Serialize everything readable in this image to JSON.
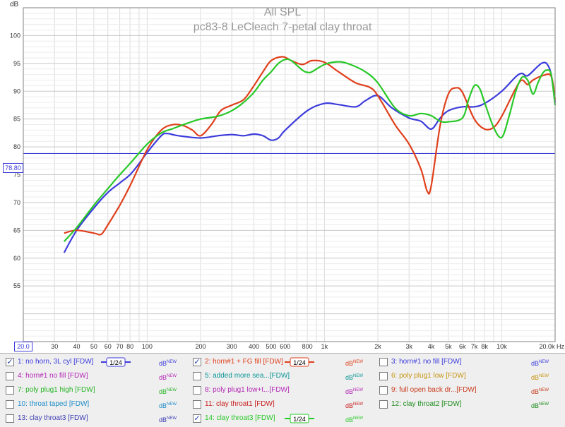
{
  "title": "All SPL",
  "subtitle": "pc83-8 LeCleach 7-petal clay throat",
  "chart_data": {
    "type": "line",
    "xscale": "log",
    "xlim": [
      20,
      20000
    ],
    "ylim": [
      45,
      105
    ],
    "ylabel": "dB",
    "xlabel": "Hz",
    "y_ticks": [
      "55",
      "60",
      "65",
      "70",
      "75",
      "80",
      "85",
      "90",
      "95",
      "100"
    ],
    "x_ticks": [
      {
        "v": 30,
        "t": "30"
      },
      {
        "v": 40,
        "t": "40"
      },
      {
        "v": 50,
        "t": "50"
      },
      {
        "v": 60,
        "t": "60"
      },
      {
        "v": 70,
        "t": "70"
      },
      {
        "v": 80,
        "t": "80"
      },
      {
        "v": 100,
        "t": "100"
      },
      {
        "v": 200,
        "t": "200"
      },
      {
        "v": 300,
        "t": "300"
      },
      {
        "v": 400,
        "t": "400"
      },
      {
        "v": 500,
        "t": "500"
      },
      {
        "v": 600,
        "t": "600"
      },
      {
        "v": 800,
        "t": "800"
      },
      {
        "v": 1000,
        "t": "1k"
      },
      {
        "v": 2000,
        "t": "2k"
      },
      {
        "v": 3000,
        "t": "3k"
      },
      {
        "v": 4000,
        "t": "4k"
      },
      {
        "v": 5000,
        "t": "5k"
      },
      {
        "v": 6000,
        "t": "6k"
      },
      {
        "v": 7000,
        "t": "7k"
      },
      {
        "v": 8000,
        "t": "8k"
      },
      {
        "v": 10000,
        "t": "10k"
      },
      {
        "v": 20000,
        "t": "20.0k Hz"
      }
    ],
    "x_min_label": "20.0",
    "cursor": {
      "value": 78.8,
      "label": "78.80",
      "color": "#3c3cdc"
    },
    "grid": true,
    "series": [
      {
        "name": "1: no horn, 3L cyl [FDW]",
        "color": "#3c3cdc",
        "points": [
          [
            34,
            61
          ],
          [
            40,
            65
          ],
          [
            50,
            69
          ],
          [
            60,
            71.8
          ],
          [
            70,
            73.5
          ],
          [
            80,
            75
          ],
          [
            90,
            77
          ],
          [
            100,
            79
          ],
          [
            120,
            82
          ],
          [
            130,
            82.4
          ],
          [
            150,
            82
          ],
          [
            200,
            81.6
          ],
          [
            250,
            82
          ],
          [
            300,
            82.2
          ],
          [
            350,
            82
          ],
          [
            400,
            82.3
          ],
          [
            450,
            82
          ],
          [
            500,
            81.2
          ],
          [
            550,
            81.6
          ],
          [
            600,
            83
          ],
          [
            800,
            86.5
          ],
          [
            1000,
            87.8
          ],
          [
            1200,
            87.6
          ],
          [
            1500,
            87.2
          ],
          [
            1700,
            88.3
          ],
          [
            2000,
            89.2
          ],
          [
            2400,
            87
          ],
          [
            3000,
            85.2
          ],
          [
            3500,
            84.6
          ],
          [
            4000,
            83.2
          ],
          [
            4500,
            85.2
          ],
          [
            5000,
            86.5
          ],
          [
            6000,
            87.2
          ],
          [
            7000,
            87.2
          ],
          [
            8000,
            87.8
          ],
          [
            10000,
            90
          ],
          [
            12000,
            92.6
          ],
          [
            13000,
            93.2
          ],
          [
            14000,
            92.8
          ],
          [
            16000,
            94.5
          ],
          [
            17000,
            95.1
          ],
          [
            18000,
            94.9
          ],
          [
            19000,
            93
          ],
          [
            20000,
            88
          ]
        ]
      },
      {
        "name": "2: horn#1 + FG fill [FDW]",
        "color": "#e0401c",
        "points": [
          [
            34,
            64.5
          ],
          [
            40,
            65
          ],
          [
            50,
            64.5
          ],
          [
            55,
            64.3
          ],
          [
            60,
            66
          ],
          [
            70,
            69.5
          ],
          [
            80,
            73
          ],
          [
            100,
            79.5
          ],
          [
            120,
            83
          ],
          [
            140,
            84
          ],
          [
            160,
            83.8
          ],
          [
            180,
            83
          ],
          [
            200,
            82
          ],
          [
            230,
            84
          ],
          [
            260,
            86.5
          ],
          [
            300,
            87.5
          ],
          [
            350,
            88.5
          ],
          [
            400,
            91
          ],
          [
            450,
            93.5
          ],
          [
            500,
            95.5
          ],
          [
            580,
            96.2
          ],
          [
            650,
            95.5
          ],
          [
            750,
            94.8
          ],
          [
            850,
            95.5
          ],
          [
            1000,
            95.2
          ],
          [
            1200,
            93.5
          ],
          [
            1500,
            91.5
          ],
          [
            1800,
            90.7
          ],
          [
            2000,
            89.2
          ],
          [
            2500,
            84
          ],
          [
            3000,
            80.5
          ],
          [
            3500,
            76
          ],
          [
            3800,
            72
          ],
          [
            4000,
            73
          ],
          [
            4500,
            84
          ],
          [
            5000,
            89.5
          ],
          [
            5500,
            90.6
          ],
          [
            6000,
            89.8
          ],
          [
            7000,
            85
          ],
          [
            8000,
            83.2
          ],
          [
            9000,
            83.5
          ],
          [
            10000,
            85.5
          ],
          [
            12000,
            90.5
          ],
          [
            13000,
            92
          ],
          [
            14000,
            91.2
          ],
          [
            15000,
            92
          ],
          [
            17000,
            92.8
          ],
          [
            19000,
            92.7
          ],
          [
            20000,
            88.5
          ]
        ]
      },
      {
        "name": "14: clay throat3 [FDW]",
        "color": "#28c828",
        "points": [
          [
            34,
            63
          ],
          [
            40,
            65.5
          ],
          [
            50,
            69.5
          ],
          [
            60,
            72.5
          ],
          [
            70,
            75
          ],
          [
            80,
            77
          ],
          [
            100,
            80.5
          ],
          [
            120,
            82.5
          ],
          [
            140,
            83.3
          ],
          [
            160,
            84
          ],
          [
            200,
            85
          ],
          [
            250,
            85.5
          ],
          [
            300,
            86.5
          ],
          [
            350,
            88
          ],
          [
            400,
            89.8
          ],
          [
            450,
            92
          ],
          [
            500,
            93.5
          ],
          [
            550,
            95
          ],
          [
            600,
            95.7
          ],
          [
            650,
            95.5
          ],
          [
            750,
            93.8
          ],
          [
            800,
            93.4
          ],
          [
            850,
            93.5
          ],
          [
            1000,
            94.8
          ],
          [
            1200,
            95.3
          ],
          [
            1400,
            94.8
          ],
          [
            1700,
            93.5
          ],
          [
            2000,
            91.5
          ],
          [
            2500,
            87
          ],
          [
            3000,
            85.6
          ],
          [
            3500,
            86
          ],
          [
            4000,
            85.6
          ],
          [
            4500,
            84.6
          ],
          [
            5000,
            84.5
          ],
          [
            6000,
            85.2
          ],
          [
            6500,
            88.5
          ],
          [
            7000,
            91
          ],
          [
            7500,
            90.5
          ],
          [
            8000,
            88
          ],
          [
            9000,
            83.5
          ],
          [
            10000,
            81.7
          ],
          [
            11000,
            85.5
          ],
          [
            12000,
            90
          ],
          [
            13000,
            92.5
          ],
          [
            14000,
            92
          ],
          [
            15000,
            89.5
          ],
          [
            16000,
            91.5
          ],
          [
            17000,
            93.2
          ],
          [
            18000,
            93.8
          ],
          [
            19000,
            93
          ],
          [
            20000,
            87.5
          ]
        ]
      }
    ]
  },
  "legend": [
    {
      "label": "1: no horn, 3L cyl [FDW]",
      "color": "#3c3cdc",
      "checked": true,
      "smoothing": "1/24",
      "db_color": "#3c3cdc"
    },
    {
      "label": "2: horn#1 + FG fill [FDW]",
      "color": "#e0401c",
      "checked": true,
      "smoothing": "1/24",
      "db_color": "#e0401c"
    },
    {
      "label": "3: horn#1 no fill [FDW]",
      "color": "#3c3cdc",
      "checked": false,
      "smoothing": "",
      "db_color": "#3c3cdc"
    },
    {
      "label": "4: horn#1 no fill [FDW]",
      "color": "#b428b4",
      "checked": false,
      "smoothing": "",
      "db_color": "#b428b4"
    },
    {
      "label": "5: added more sea...[FDW]",
      "color": "#0a9696",
      "checked": false,
      "smoothing": "",
      "db_color": "#0a9696"
    },
    {
      "label": "6: poly plug1 low [FDW]",
      "color": "#c89614",
      "checked": false,
      "smoothing": "",
      "db_color": "#c89614"
    },
    {
      "label": "7: poly plug1 high [FDW]",
      "color": "#28b428",
      "checked": false,
      "smoothing": "",
      "db_color": "#28b428"
    },
    {
      "label": "8: poly plug1 low+t...[FDW]",
      "color": "#b428b4",
      "checked": false,
      "smoothing": "",
      "db_color": "#b428b4"
    },
    {
      "label": "9: full open back dr...[FDW]",
      "color": "#c83c1e",
      "checked": false,
      "smoothing": "",
      "db_color": "#c83c1e"
    },
    {
      "label": "10: throat taped [FDW]",
      "color": "#1e8cc8",
      "checked": false,
      "smoothing": "",
      "db_color": "#1e8cc8"
    },
    {
      "label": "11: clay throat1 [FDW]",
      "color": "#c81e1e",
      "checked": false,
      "smoothing": "",
      "db_color": "#c81e1e"
    },
    {
      "label": "12: clay throat2 [FDW]",
      "color": "#1e8c1e",
      "checked": false,
      "smoothing": "",
      "db_color": "#1e8c1e"
    },
    {
      "label": "13: clay throat3 [FDW]",
      "color": "#3c3cb4",
      "checked": false,
      "smoothing": "",
      "db_color": "#3c3cb4"
    },
    {
      "label": "14: clay throat3 [FDW]",
      "color": "#28c828",
      "checked": true,
      "smoothing": "1/24",
      "db_color": "#28c828"
    }
  ],
  "db_label": "dB",
  "db_sup": "NEW"
}
